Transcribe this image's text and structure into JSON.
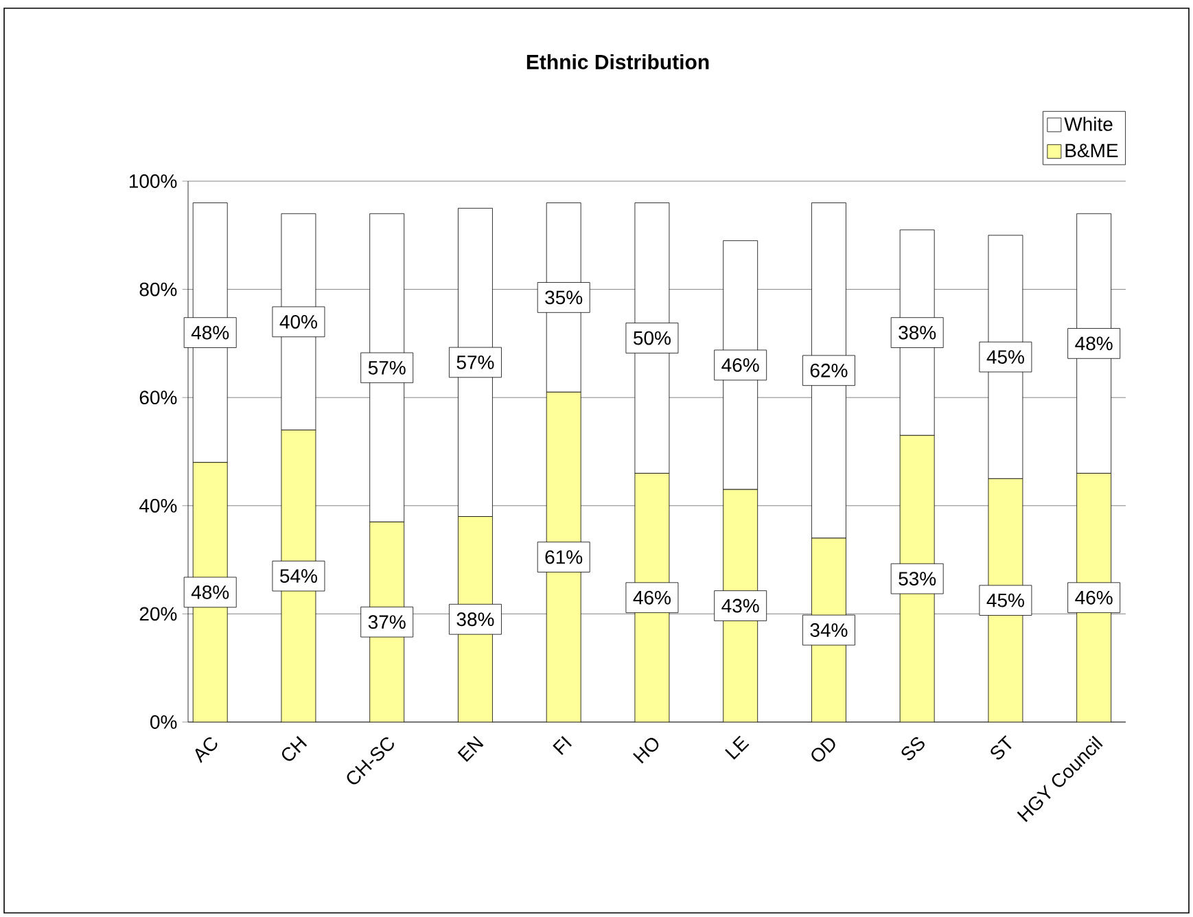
{
  "chart_data": {
    "type": "bar",
    "title": "Ethnic Distribution",
    "stacked": true,
    "grid": "y",
    "legend": "top right",
    "categories": [
      "AC",
      "CH",
      "CH-SC",
      "EN",
      "FI",
      "HO",
      "LE",
      "OD",
      "SS",
      "ST",
      "HGY Council"
    ],
    "series": [
      {
        "name": "B&ME",
        "color": "#ffff99",
        "values": [
          48,
          54,
          37,
          38,
          61,
          46,
          43,
          34,
          53,
          45,
          46
        ],
        "value_labels": [
          "48%",
          "54%",
          "37%",
          "38%",
          "61%",
          "46%",
          "43%",
          "34%",
          "53%",
          "45%",
          "46%"
        ]
      },
      {
        "name": "White",
        "color": "#ffffff",
        "values": [
          48,
          40,
          57,
          57,
          35,
          50,
          46,
          62,
          38,
          45,
          48
        ],
        "value_labels": [
          "48%",
          "40%",
          "57%",
          "57%",
          "35%",
          "50%",
          "46%",
          "62%",
          "38%",
          "45%",
          "48%"
        ]
      }
    ],
    "ylim": [
      0,
      100
    ],
    "yticks": [
      {
        "value": 0,
        "label": "0%"
      },
      {
        "value": 20,
        "label": "20%"
      },
      {
        "value": 40,
        "label": "40%"
      },
      {
        "value": 60,
        "label": "60%"
      },
      {
        "value": 80,
        "label": "80%"
      },
      {
        "value": 100,
        "label": "100%"
      }
    ]
  }
}
